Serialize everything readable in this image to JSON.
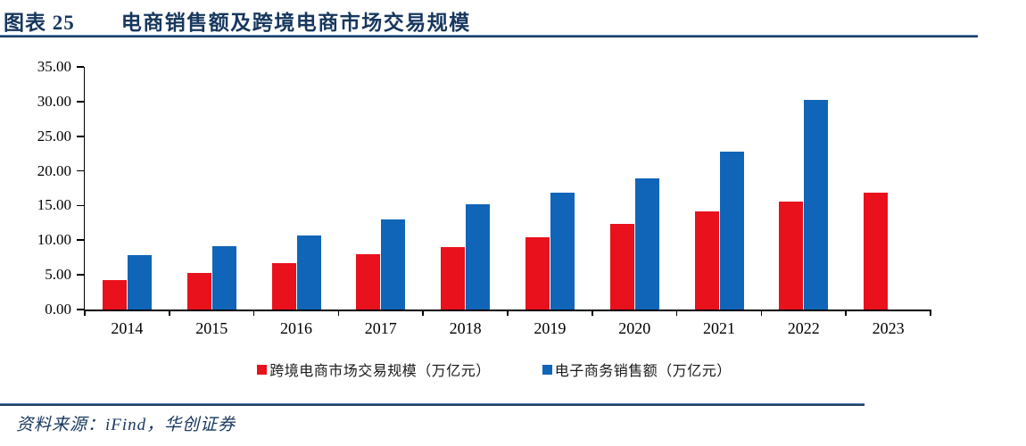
{
  "header": {
    "figure_label": "图表 25",
    "title": "电商销售额及跨境电商市场交易规模"
  },
  "footer": {
    "source": "资料来源：iFind，华创证券"
  },
  "colors": {
    "accent_navy": "#17375E",
    "bar_red": "#E8111C",
    "bar_blue": "#1065B8",
    "axis_black": "#000000"
  },
  "chart_data": {
    "type": "bar",
    "title": "电商销售额及跨境电商市场交易规模",
    "categories": [
      "2014",
      "2015",
      "2016",
      "2017",
      "2018",
      "2019",
      "2020",
      "2021",
      "2022",
      "2023"
    ],
    "series": [
      {
        "name": "跨境电商市场交易规模（万亿元）",
        "color": "#E8111C",
        "values": [
          4.2,
          5.3,
          6.7,
          8.0,
          9.0,
          10.4,
          12.4,
          14.2,
          15.6,
          16.8
        ]
      },
      {
        "name": "电子商务销售额（万亿元）",
        "color": "#1065B8",
        "values": [
          7.9,
          9.2,
          10.7,
          13.0,
          15.2,
          16.9,
          18.9,
          22.8,
          30.3,
          null
        ]
      }
    ],
    "xlabel": "",
    "ylabel": "",
    "ylim": [
      0,
      35
    ],
    "ytick_step": 5,
    "ytick_labels": [
      "0.00",
      "5.00",
      "10.00",
      "15.00",
      "20.00",
      "25.00",
      "30.00",
      "35.00"
    ],
    "grid": false,
    "legend_position": "bottom"
  }
}
